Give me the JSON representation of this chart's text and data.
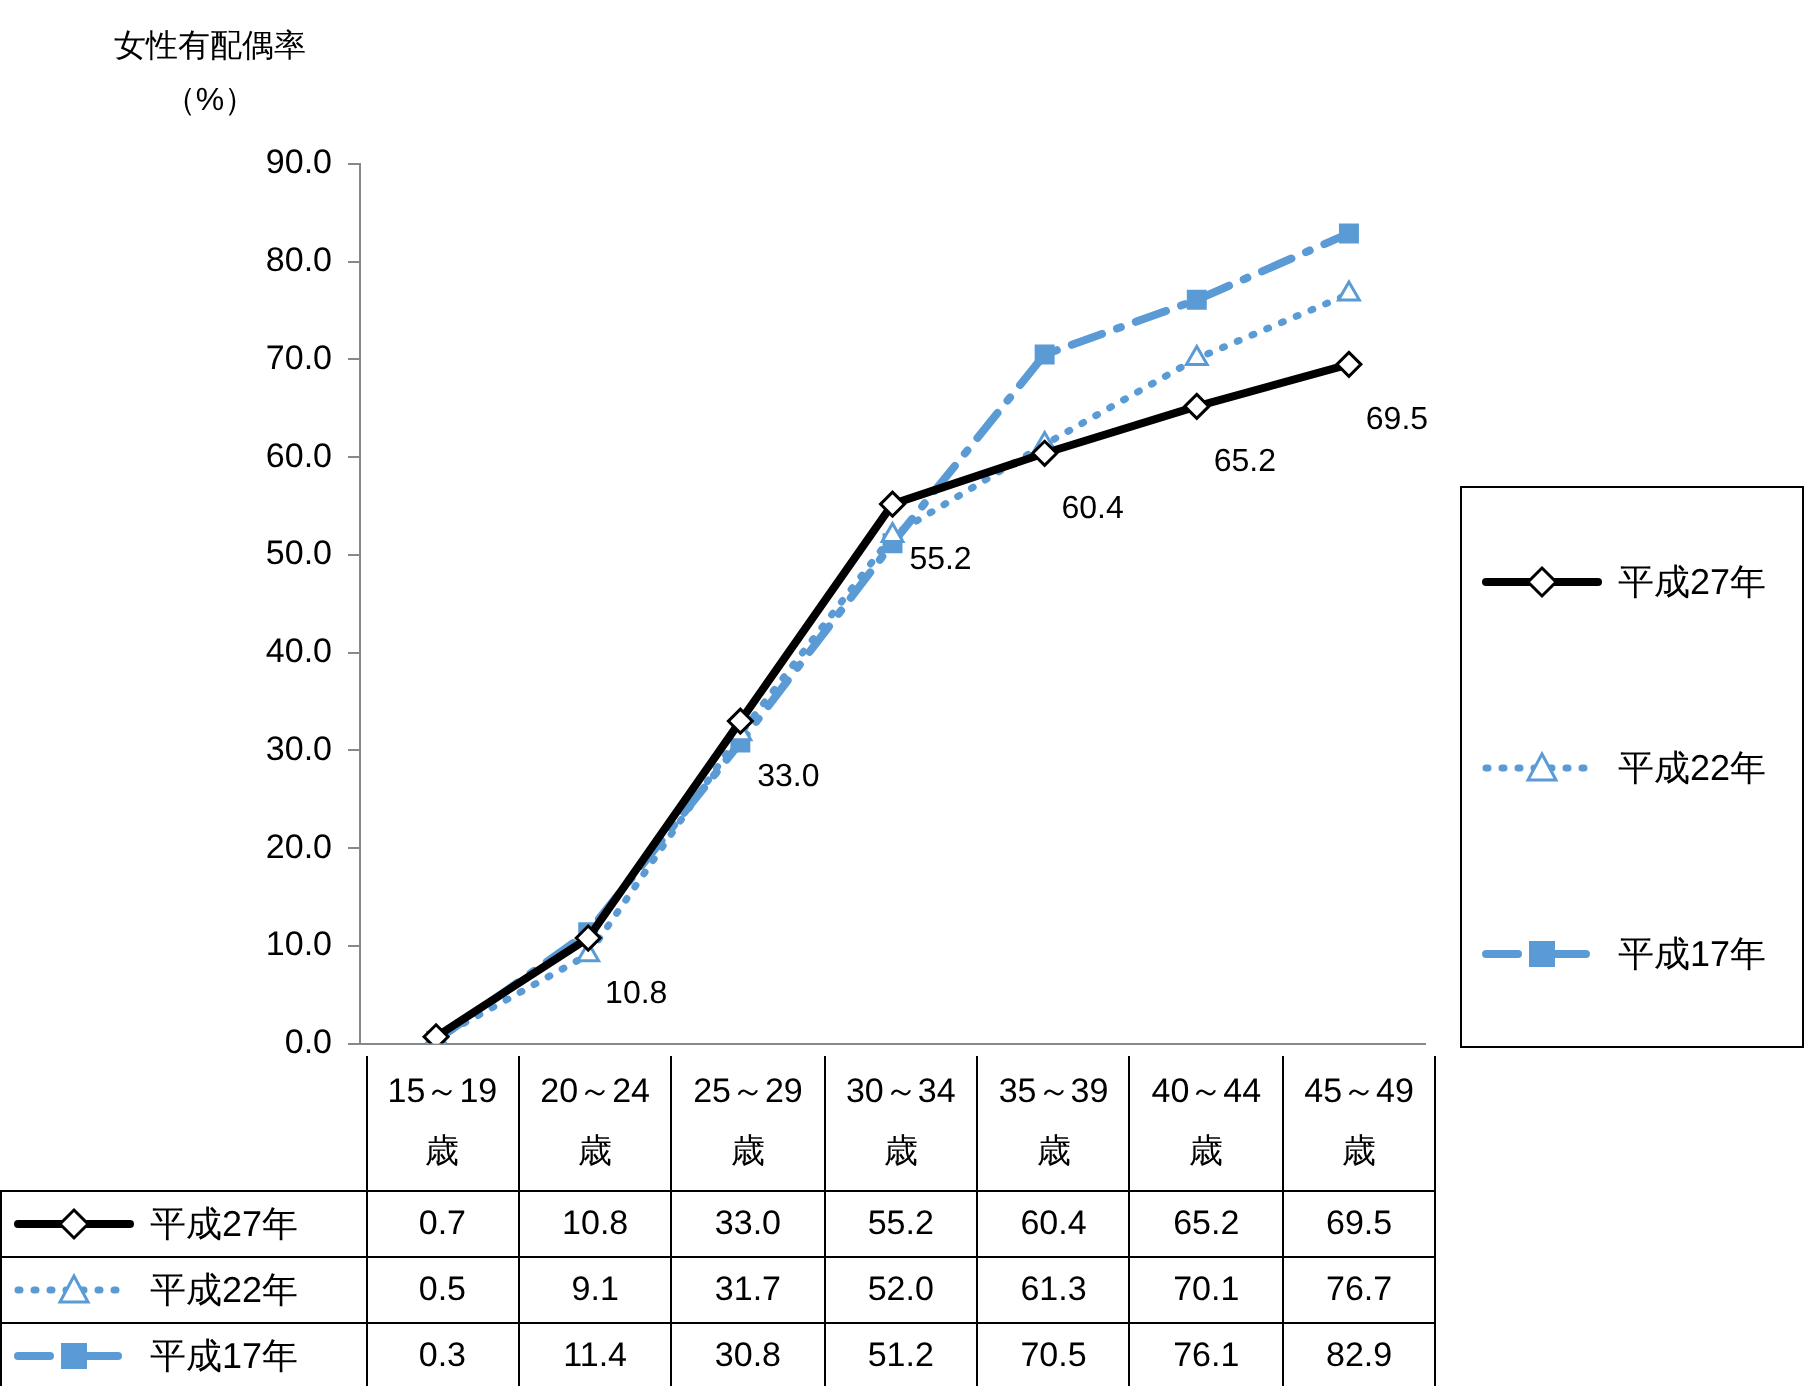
{
  "chart_data": {
    "type": "line",
    "ylabel": "女性有配偶率（%）",
    "categories": [
      "15～19歳",
      "20～24歳",
      "25～29歳",
      "30～34歳",
      "35～39歳",
      "40～44歳",
      "45～49歳"
    ],
    "series": [
      {
        "name": "平成27年",
        "color": "#000000",
        "values": [
          0.7,
          10.8,
          33.0,
          55.2,
          60.4,
          65.2,
          69.5
        ],
        "marker": "diamond",
        "line_style": "solid",
        "value_labels": [
          "0.7",
          "10.8",
          "33.0",
          "55.2",
          "60.4",
          "65.2",
          "69.5"
        ]
      },
      {
        "name": "平成22年",
        "color": "#5b9bd5",
        "values": [
          0.5,
          9.1,
          31.7,
          52.0,
          61.3,
          70.1,
          76.7
        ],
        "marker": "triangle",
        "line_style": "dotted",
        "value_labels": [
          "0.5",
          "9.1",
          "31.7",
          "52.0",
          "61.3",
          "70.1",
          "76.7"
        ]
      },
      {
        "name": "平成17年",
        "color": "#5b9bd5",
        "values": [
          0.3,
          11.4,
          30.8,
          51.2,
          70.5,
          76.1,
          82.9
        ],
        "marker": "square",
        "line_style": "dashed",
        "value_labels": [
          "0.3",
          "11.4",
          "30.8",
          "51.2",
          "70.5",
          "76.1",
          "82.9"
        ]
      }
    ],
    "ylim": [
      0,
      90
    ],
    "yticks": [
      {
        "value": 0,
        "label": "0.0"
      },
      {
        "value": 10,
        "label": "10.0"
      },
      {
        "value": 20,
        "label": "20.0"
      },
      {
        "value": 30,
        "label": "30.0"
      },
      {
        "value": 40,
        "label": "40.0"
      },
      {
        "value": 50,
        "label": "50.0"
      },
      {
        "value": 60,
        "label": "60.0"
      },
      {
        "value": 70,
        "label": "70.0"
      },
      {
        "value": 80,
        "label": "80.0"
      },
      {
        "value": 90,
        "label": "90.0"
      }
    ],
    "grid": false,
    "legend": "right"
  }
}
